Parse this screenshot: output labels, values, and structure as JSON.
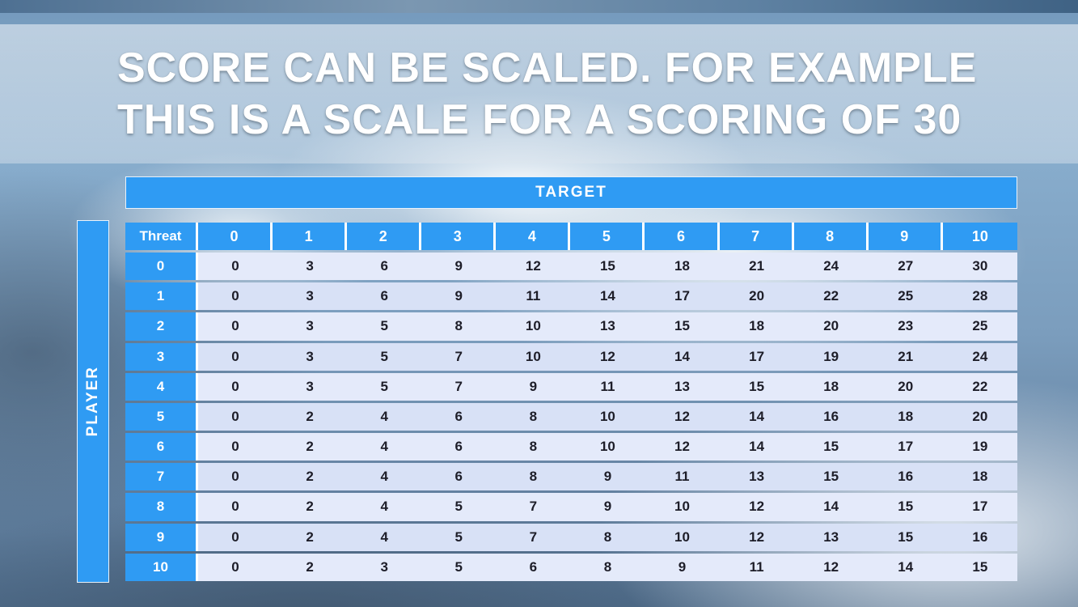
{
  "slide": {
    "title_line1": "SCORE CAN BE SCALED. FOR EXAMPLE",
    "title_line2": "THIS IS A SCALE FOR A SCORING OF 30"
  },
  "table": {
    "target_label": "TARGET",
    "player_label": "PLAYER",
    "corner_label": "Threat",
    "col_headers": [
      "0",
      "1",
      "2",
      "3",
      "4",
      "5",
      "6",
      "7",
      "8",
      "9",
      "10"
    ],
    "rows": [
      {
        "header": "0",
        "values": [
          0,
          3,
          6,
          9,
          12,
          15,
          18,
          21,
          24,
          27,
          30
        ]
      },
      {
        "header": "1",
        "values": [
          0,
          3,
          6,
          9,
          11,
          14,
          17,
          20,
          22,
          25,
          28
        ]
      },
      {
        "header": "2",
        "values": [
          0,
          3,
          5,
          8,
          10,
          13,
          15,
          18,
          20,
          23,
          25
        ]
      },
      {
        "header": "3",
        "values": [
          0,
          3,
          5,
          7,
          10,
          12,
          14,
          17,
          19,
          21,
          24
        ]
      },
      {
        "header": "4",
        "values": [
          0,
          3,
          5,
          7,
          9,
          11,
          13,
          15,
          18,
          20,
          22
        ]
      },
      {
        "header": "5",
        "values": [
          0,
          2,
          4,
          6,
          8,
          10,
          12,
          14,
          16,
          18,
          20
        ]
      },
      {
        "header": "6",
        "values": [
          0,
          2,
          4,
          6,
          8,
          10,
          12,
          14,
          15,
          17,
          19
        ]
      },
      {
        "header": "7",
        "values": [
          0,
          2,
          4,
          6,
          8,
          9,
          11,
          13,
          15,
          16,
          18
        ]
      },
      {
        "header": "8",
        "values": [
          0,
          2,
          4,
          5,
          7,
          9,
          10,
          12,
          14,
          15,
          17
        ]
      },
      {
        "header": "9",
        "values": [
          0,
          2,
          4,
          5,
          7,
          8,
          10,
          12,
          13,
          15,
          16
        ]
      },
      {
        "header": "10",
        "values": [
          0,
          2,
          3,
          5,
          6,
          8,
          9,
          11,
          12,
          14,
          15
        ]
      }
    ]
  },
  "colors": {
    "header_blue": "#2f9bf3",
    "row_light": "#e4eafa",
    "row_dark": "#d8e1f6",
    "top_strip": "#5e81a2",
    "cell_text": "#1d1d28"
  }
}
